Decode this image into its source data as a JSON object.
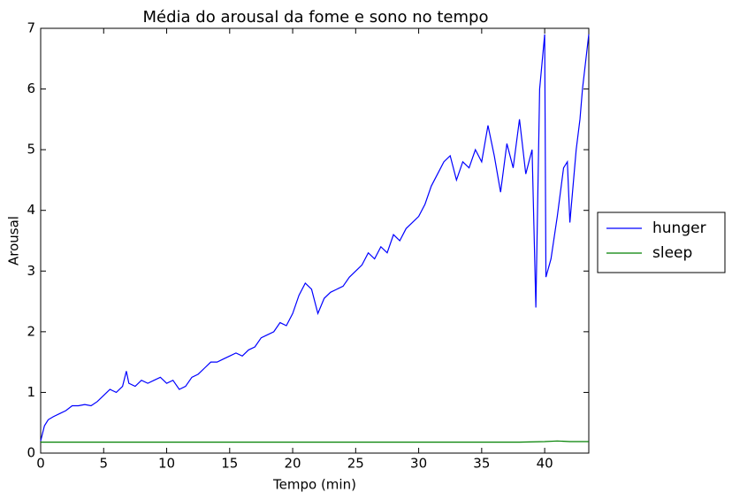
{
  "chart_data": {
    "type": "line",
    "title": "Média do arousal da fome e sono no tempo",
    "x_label": "Tempo (min)",
    "y_label": "Arousal",
    "xlim": [
      0,
      43.5
    ],
    "ylim": [
      0,
      7
    ],
    "xticks": [
      0,
      5,
      10,
      15,
      20,
      25,
      30,
      35,
      40
    ],
    "yticks": [
      0,
      1,
      2,
      3,
      4,
      5,
      6,
      7
    ],
    "legend": "outside-right",
    "series": [
      {
        "name": "hunger",
        "color": "#0000ff",
        "x": [
          0,
          0.3,
          0.6,
          1,
          1.5,
          2,
          2.5,
          3,
          3.5,
          4,
          4.5,
          5,
          5.5,
          6,
          6.5,
          6.8,
          7,
          7.5,
          8,
          8.5,
          9,
          9.5,
          10,
          10.5,
          11,
          11.5,
          12,
          12.5,
          13,
          13.5,
          14,
          14.5,
          15,
          15.5,
          16,
          16.5,
          17,
          17.5,
          18,
          18.5,
          19,
          19.5,
          20,
          20.5,
          21,
          21.5,
          22,
          22.5,
          23,
          23.5,
          24,
          24.5,
          25,
          25.5,
          26,
          26.5,
          27,
          27.5,
          28,
          28.5,
          29,
          29.5,
          30,
          30.5,
          31,
          31.5,
          32,
          32.5,
          33,
          33.5,
          34,
          34.5,
          35,
          35.5,
          36,
          36.5,
          37,
          37.5,
          38,
          38.5,
          39,
          39.3,
          39.6,
          40,
          40.1,
          40.5,
          41,
          41.5,
          41.8,
          42,
          42.5,
          42.8,
          43,
          43.5
        ],
        "values": [
          0.2,
          0.45,
          0.55,
          0.6,
          0.65,
          0.7,
          0.78,
          0.78,
          0.8,
          0.78,
          0.85,
          0.95,
          1.05,
          1.0,
          1.1,
          1.35,
          1.15,
          1.1,
          1.2,
          1.15,
          1.2,
          1.25,
          1.15,
          1.2,
          1.05,
          1.1,
          1.25,
          1.3,
          1.4,
          1.5,
          1.5,
          1.55,
          1.6,
          1.65,
          1.6,
          1.7,
          1.75,
          1.9,
          1.95,
          2.0,
          2.15,
          2.1,
          2.3,
          2.6,
          2.8,
          2.7,
          2.3,
          2.55,
          2.65,
          2.7,
          2.75,
          2.9,
          3.0,
          3.1,
          3.3,
          3.2,
          3.4,
          3.3,
          3.6,
          3.5,
          3.7,
          3.8,
          3.9,
          4.1,
          4.4,
          4.6,
          4.8,
          4.9,
          4.5,
          4.8,
          4.7,
          5.0,
          4.8,
          5.4,
          4.9,
          4.3,
          5.1,
          4.7,
          5.5,
          4.6,
          5.0,
          2.4,
          6.0,
          6.9,
          2.9,
          3.2,
          3.9,
          4.7,
          4.8,
          3.8,
          5.0,
          5.5,
          6.0,
          6.9
        ]
      },
      {
        "name": "sleep",
        "color": "#008000",
        "x": [
          0,
          38,
          40,
          41,
          42,
          43.5
        ],
        "values": [
          0.18,
          0.18,
          0.19,
          0.2,
          0.19,
          0.19
        ]
      }
    ]
  }
}
